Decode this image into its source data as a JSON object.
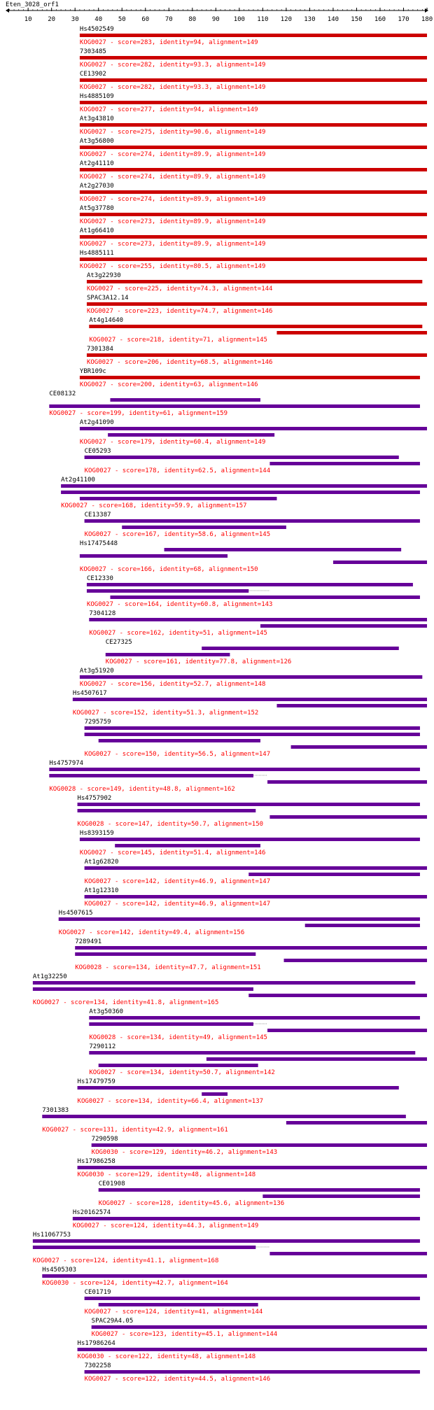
{
  "title": "Eten_3028_orf1",
  "colors": {
    "text": "#000000",
    "label": "#ff0000",
    "bar_red": "#cc0000",
    "bar_purple": "#660099",
    "gap": "#999999",
    "axis": "#000000"
  },
  "chart_data": {
    "type": "alignment",
    "query": "Eten_3028_orf1",
    "xlim": [
      1,
      180
    ],
    "ticks": [
      10,
      20,
      30,
      40,
      50,
      60,
      70,
      80,
      90,
      100,
      110,
      120,
      130,
      140,
      150,
      160,
      170,
      180
    ],
    "hits": [
      {
        "name": "Hs4502549",
        "label": "KOG0027 - score=283, identity=94, alignment=149",
        "color": "red",
        "segments": [
          [
            32,
            180
          ]
        ],
        "gaps": []
      },
      {
        "name": "7303485",
        "label": "KOG0027 - score=282, identity=93.3, alignment=149",
        "color": "red",
        "segments": [
          [
            32,
            180
          ]
        ],
        "gaps": []
      },
      {
        "name": "CE13902",
        "label": "KOG0027 - score=282, identity=93.3, alignment=149",
        "color": "red",
        "segments": [
          [
            32,
            180
          ]
        ],
        "gaps": []
      },
      {
        "name": "Hs4885109",
        "label": "KOG0027 - score=277, identity=94, alignment=149",
        "color": "red",
        "segments": [
          [
            32,
            180
          ]
        ],
        "gaps": []
      },
      {
        "name": "At3g43810",
        "label": "KOG0027 - score=275, identity=90.6, alignment=149",
        "color": "red",
        "segments": [
          [
            32,
            180
          ]
        ],
        "gaps": []
      },
      {
        "name": "At3g56800",
        "label": "KOG0027 - score=274, identity=89.9, alignment=149",
        "color": "red",
        "segments": [
          [
            32,
            180
          ]
        ],
        "gaps": []
      },
      {
        "name": "At2g41110",
        "label": "KOG0027 - score=274, identity=89.9, alignment=149",
        "color": "red",
        "segments": [
          [
            32,
            180
          ]
        ],
        "gaps": []
      },
      {
        "name": "At2g27030",
        "label": "KOG0027 - score=274, identity=89.9, alignment=149",
        "color": "red",
        "segments": [
          [
            32,
            180
          ]
        ],
        "gaps": []
      },
      {
        "name": "At5g37780",
        "label": "KOG0027 - score=273, identity=89.9, alignment=149",
        "color": "red",
        "segments": [
          [
            32,
            180
          ]
        ],
        "gaps": []
      },
      {
        "name": "At1g66410",
        "label": "KOG0027 - score=273, identity=89.9, alignment=149",
        "color": "red",
        "segments": [
          [
            32,
            180
          ]
        ],
        "gaps": []
      },
      {
        "name": "Hs4885111",
        "label": "KOG0027 - score=255, identity=80.5, alignment=149",
        "color": "red",
        "segments": [
          [
            32,
            180
          ]
        ],
        "gaps": []
      },
      {
        "name": "At3g22930",
        "label": "KOG0027 - score=225, identity=74.3, alignment=144",
        "color": "red",
        "segments": [
          [
            35,
            178
          ]
        ],
        "gaps": []
      },
      {
        "name": "SPAC3A12.14",
        "label": "KOG0027 - score=223, identity=74.7, alignment=146",
        "color": "red",
        "segments": [
          [
            35,
            180
          ]
        ],
        "gaps": []
      },
      {
        "name": "At4g14640",
        "label": "KOG0027 - score=218, identity=71, alignment=145",
        "color": "red",
        "segments": [
          [
            36,
            178
          ],
          [
            116,
            180
          ]
        ],
        "gaps": []
      },
      {
        "name": "7301384",
        "label": "KOG0027 - score=206, identity=68.5, alignment=146",
        "color": "red",
        "segments": [
          [
            35,
            180
          ]
        ],
        "gaps": []
      },
      {
        "name": "YBR109c",
        "label": "KOG0027 - score=200, identity=63, alignment=146",
        "color": "red",
        "segments": [
          [
            32,
            177
          ]
        ],
        "gaps": []
      },
      {
        "name": "CE08132",
        "label": "KOG0027 - score=199, identity=61, alignment=159",
        "color": "purple",
        "segments": [
          [
            45,
            109
          ],
          [
            19,
            177
          ]
        ],
        "gaps": []
      },
      {
        "name": "At2g41090",
        "label": "KOG0027 - score=179, identity=60.4, alignment=149",
        "color": "purple",
        "segments": [
          [
            32,
            180
          ],
          [
            44,
            115
          ]
        ],
        "gaps": []
      },
      {
        "name": "CE05293",
        "label": "KOG0027 - score=178, identity=62.5, alignment=144",
        "color": "purple",
        "segments": [
          [
            34,
            168
          ],
          [
            113,
            177
          ]
        ],
        "gaps": []
      },
      {
        "name": "At2g41100",
        "label": "KOG0027 - score=168, identity=59.9, alignment=157",
        "color": "purple",
        "segments": [
          [
            24,
            180
          ],
          [
            24,
            177
          ],
          [
            32,
            116
          ]
        ],
        "gaps": []
      },
      {
        "name": "CE13387",
        "label": "KOG0027 - score=167, identity=58.6, alignment=145",
        "color": "purple",
        "segments": [
          [
            34,
            177
          ],
          [
            50,
            120
          ]
        ],
        "gaps": []
      },
      {
        "name": "Hs17475448",
        "label": "KOG0027 - score=166, identity=68, alignment=150",
        "color": "purple",
        "segments": [
          [
            68,
            169
          ],
          [
            32,
            95
          ],
          [
            140,
            180
          ]
        ],
        "gaps": []
      },
      {
        "name": "CE12330",
        "label": "KOG0027 - score=164, identity=60.8, alignment=143",
        "color": "purple",
        "segments": [
          [
            35,
            174
          ],
          [
            35,
            104
          ],
          [
            45,
            177
          ]
        ],
        "gaps": [
          [
            104,
            113
          ]
        ]
      },
      {
        "name": "7304128",
        "label": "KOG0027 - score=162, identity=51, alignment=145",
        "color": "purple",
        "segments": [
          [
            36,
            180
          ],
          [
            109,
            180
          ]
        ],
        "gaps": []
      },
      {
        "name": "CE27325",
        "label": "KOG0027 - score=161, identity=77.8, alignment=126",
        "color": "purple",
        "segments": [
          [
            84,
            168
          ],
          [
            43,
            96
          ]
        ],
        "gaps": []
      },
      {
        "name": "At3g51920",
        "label": "KOG0027 - score=156, identity=52.7, alignment=148",
        "color": "purple",
        "segments": [
          [
            32,
            178
          ]
        ],
        "gaps": []
      },
      {
        "name": "Hs4507617",
        "label": "KOG0027 - score=152, identity=51.3, alignment=152",
        "color": "purple",
        "segments": [
          [
            29,
            180
          ],
          [
            116,
            180
          ]
        ],
        "gaps": []
      },
      {
        "name": "7295759",
        "label": "KOG0027 - score=150, identity=56.5, alignment=147",
        "color": "purple",
        "segments": [
          [
            34,
            177
          ],
          [
            34,
            177
          ],
          [
            40,
            109
          ],
          [
            122,
            180
          ]
        ],
        "gaps": []
      },
      {
        "name": "Hs4757974",
        "label": "KOG0028 - score=149, identity=48.8, alignment=162",
        "color": "purple",
        "segments": [
          [
            19,
            177
          ],
          [
            19,
            106
          ],
          [
            112,
            180
          ]
        ],
        "gaps": [
          [
            106,
            112
          ]
        ]
      },
      {
        "name": "Hs4757902",
        "label": "KOG0028 - score=147, identity=50.7, alignment=150",
        "color": "purple",
        "segments": [
          [
            31,
            177
          ],
          [
            31,
            107
          ],
          [
            113,
            180
          ]
        ],
        "gaps": []
      },
      {
        "name": "Hs8393159",
        "label": "KOG0027 - score=145, identity=51.4, alignment=146",
        "color": "purple",
        "segments": [
          [
            32,
            177
          ],
          [
            47,
            109
          ]
        ],
        "gaps": []
      },
      {
        "name": "At1g62820",
        "label": "KOG0027 - score=142, identity=46.9, alignment=147",
        "color": "purple",
        "segments": [
          [
            34,
            180
          ],
          [
            104,
            177
          ]
        ],
        "gaps": []
      },
      {
        "name": "At1g12310",
        "label": "KOG0027 - score=142, identity=46.9, alignment=147",
        "color": "purple",
        "segments": [
          [
            34,
            180
          ]
        ],
        "gaps": []
      },
      {
        "name": "Hs4507615",
        "label": "KOG0027 - score=142, identity=49.4, alignment=156",
        "color": "purple",
        "segments": [
          [
            23,
            177
          ],
          [
            128,
            177
          ]
        ],
        "gaps": []
      },
      {
        "name": "7289491",
        "label": "KOG0028 - score=134, identity=47.7, alignment=151",
        "color": "purple",
        "segments": [
          [
            30,
            180
          ],
          [
            30,
            107
          ],
          [
            119,
            180
          ]
        ],
        "gaps": []
      },
      {
        "name": "At1g32250",
        "label": "KOG0027 - score=134, identity=41.8, alignment=165",
        "color": "purple",
        "segments": [
          [
            12,
            175
          ],
          [
            12,
            106
          ],
          [
            104,
            180
          ]
        ],
        "gaps": []
      },
      {
        "name": "At3g50360",
        "label": "KOG0028 - score=134, identity=49, alignment=145",
        "color": "purple",
        "segments": [
          [
            36,
            177
          ],
          [
            36,
            106
          ],
          [
            112,
            180
          ]
        ],
        "gaps": [
          [
            106,
            112
          ]
        ]
      },
      {
        "name": "7290112",
        "label": "KOG0027 - score=134, identity=50.7, alignment=142",
        "color": "purple",
        "segments": [
          [
            36,
            175
          ],
          [
            86,
            180
          ],
          [
            40,
            108
          ]
        ],
        "gaps": []
      },
      {
        "name": "Hs17479759",
        "label": "KOG0027 - score=134, identity=66.4, alignment=137",
        "color": "purple",
        "segments": [
          [
            31,
            168
          ],
          [
            84,
            95
          ]
        ],
        "gaps": []
      },
      {
        "name": "7301383",
        "label": "KOG0027 - score=131, identity=42.9, alignment=161",
        "color": "purple",
        "segments": [
          [
            16,
            171
          ],
          [
            120,
            180
          ]
        ],
        "gaps": []
      },
      {
        "name": "7290598",
        "label": "KOG0030 - score=129, identity=46.2, alignment=143",
        "color": "purple",
        "segments": [
          [
            37,
            180
          ]
        ],
        "gaps": []
      },
      {
        "name": "Hs17986258",
        "label": "KOG0030 - score=129, identity=48, alignment=148",
        "color": "purple",
        "segments": [
          [
            31,
            180
          ]
        ],
        "gaps": []
      },
      {
        "name": "CE01908",
        "label": "KOG0027 - score=128, identity=45.6, alignment=136",
        "color": "purple",
        "segments": [
          [
            40,
            177
          ],
          [
            110,
            177
          ]
        ],
        "gaps": []
      },
      {
        "name": "Hs20162574",
        "label": "KOG0027 - score=124, identity=44.3, alignment=149",
        "color": "purple",
        "segments": [
          [
            29,
            177
          ]
        ],
        "gaps": []
      },
      {
        "name": "Hs11067753",
        "label": "KOG0027 - score=124, identity=41.1, alignment=168",
        "color": "purple",
        "segments": [
          [
            12,
            177
          ],
          [
            12,
            107
          ],
          [
            113,
            180
          ]
        ],
        "gaps": [
          [
            107,
            113
          ]
        ]
      },
      {
        "name": "Hs4505303",
        "label": "KOG0030 - score=124, identity=42.7, alignment=164",
        "color": "purple",
        "segments": [
          [
            16,
            180
          ]
        ],
        "gaps": []
      },
      {
        "name": "CE01719",
        "label": "KOG0027 - score=124, identity=41, alignment=144",
        "color": "purple",
        "segments": [
          [
            34,
            177
          ],
          [
            40,
            108
          ]
        ],
        "gaps": []
      },
      {
        "name": "SPAC29A4.05",
        "label": "KOG0027 - score=123, identity=45.1, alignment=144",
        "color": "purple",
        "segments": [
          [
            37,
            180
          ]
        ],
        "gaps": []
      },
      {
        "name": "Hs17986264",
        "label": "KOG0030 - score=122, identity=48, alignment=148",
        "color": "purple",
        "segments": [
          [
            31,
            180
          ]
        ],
        "gaps": []
      },
      {
        "name": "7302258",
        "label": "KOG0027 - score=122, identity=44.5, alignment=146",
        "color": "purple",
        "segments": [
          [
            34,
            177
          ]
        ],
        "gaps": []
      }
    ]
  }
}
